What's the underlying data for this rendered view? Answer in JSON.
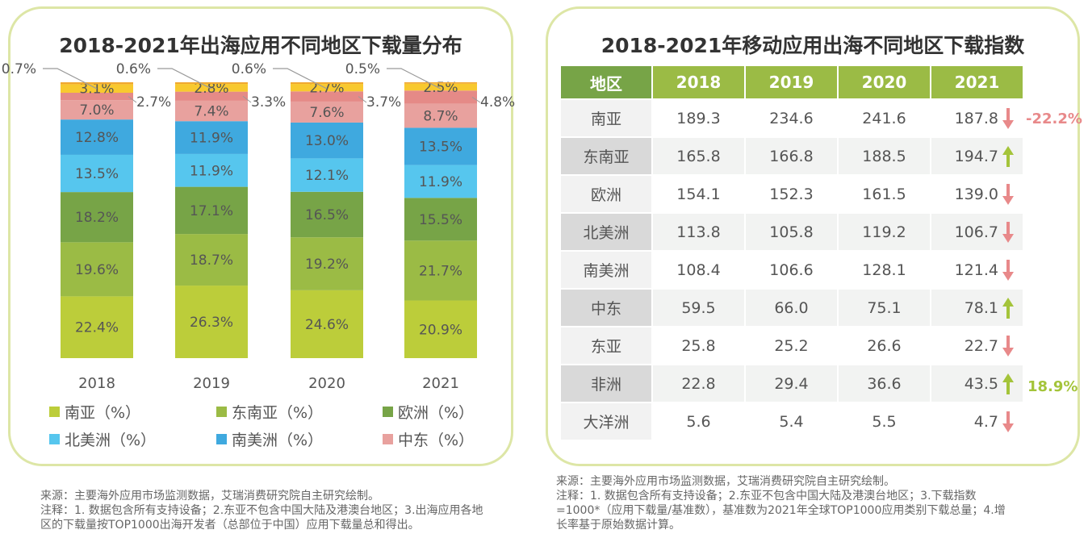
{
  "left_panel": {
    "title": "2018-2021年出海应用不同地区下载量分布",
    "chart_data": {
      "type": "bar",
      "stacked": true,
      "categories": [
        "2018",
        "2019",
        "2020",
        "2021"
      ],
      "unit": "%",
      "series": [
        {
          "name": "南亚（%）",
          "color": "#bccd3a",
          "values": [
            22.4,
            26.3,
            24.6,
            20.9
          ]
        },
        {
          "name": "东南亚（%）",
          "color": "#9bbb45",
          "values": [
            19.6,
            18.7,
            19.2,
            21.7
          ]
        },
        {
          "name": "欧洲（%）",
          "color": "#77a447",
          "values": [
            18.2,
            17.1,
            16.5,
            15.5
          ]
        },
        {
          "name": "北美洲（%）",
          "color": "#56c6ee",
          "values": [
            13.5,
            11.9,
            12.1,
            11.9
          ]
        },
        {
          "name": "南美洲（%）",
          "color": "#3fa9df",
          "values": [
            12.8,
            11.9,
            13.0,
            13.5
          ]
        },
        {
          "name": "中东（%）",
          "color": "#e8a19e",
          "values": [
            7.0,
            7.4,
            7.6,
            8.7
          ]
        },
        {
          "color": "#e58a87",
          "values": [
            2.7,
            3.3,
            3.7,
            4.8
          ]
        },
        {
          "color": "#f8c92f",
          "values": [
            3.1,
            2.8,
            2.7,
            2.5
          ]
        },
        {
          "color": "#f0a830",
          "values": [
            0.7,
            0.6,
            0.6,
            0.5
          ]
        }
      ],
      "ylim": [
        0,
        100
      ],
      "grid": false,
      "legend": "bottom"
    }
  },
  "right_panel": {
    "title": "2018-2021年移动应用出海不同地区下载指数",
    "headers": [
      "地区",
      "2018",
      "2019",
      "2020",
      "2021"
    ],
    "rows": [
      {
        "region": "南亚",
        "values": [
          "189.3",
          "234.6",
          "241.6",
          "187.8"
        ],
        "trend": "down"
      },
      {
        "region": "东南亚",
        "values": [
          "165.8",
          "166.8",
          "188.5",
          "194.7"
        ],
        "trend": "up"
      },
      {
        "region": "欧洲",
        "values": [
          "154.1",
          "152.3",
          "161.5",
          "139.0"
        ],
        "trend": "down"
      },
      {
        "region": "北美洲",
        "values": [
          "113.8",
          "105.8",
          "119.2",
          "106.7"
        ],
        "trend": "down"
      },
      {
        "region": "南美洲",
        "values": [
          "108.4",
          "106.6",
          "128.1",
          "121.4"
        ],
        "trend": "down"
      },
      {
        "region": "中东",
        "values": [
          "59.5",
          "66.0",
          "75.1",
          "78.1"
        ],
        "trend": "up"
      },
      {
        "region": "东亚",
        "values": [
          "25.8",
          "25.2",
          "26.6",
          "22.7"
        ],
        "trend": "down"
      },
      {
        "region": "非洲",
        "values": [
          "22.8",
          "29.4",
          "36.6",
          "43.5"
        ],
        "trend": "up"
      },
      {
        "region": "大洋洲",
        "values": [
          "5.6",
          "5.4",
          "5.5",
          "4.7"
        ],
        "trend": "down"
      }
    ],
    "annotations": {
      "south_asia_change": "-22.2%",
      "africa_change": "18.9%"
    },
    "colors": {
      "up": "#a4c43a",
      "down": "#e8898a",
      "header": "#9bbb45",
      "header_first": "#77a447"
    }
  },
  "notes_left": [
    "来源：主要海外应用市场监测数据，艾瑞消费研究院自主研究绘制。",
    "注释：1. 数据包含所有支持设备；2.东亚不包含中国大陆及港澳台地区；3.出海应用各地",
    "区的下载量按TOP1000出海开发者（总部位于中国）应用下载量总和得出。"
  ],
  "notes_right": [
    "来源：主要海外应用市场监测数据，艾瑞消费研究院自主研究绘制。",
    "注释：1. 数据包含所有支持设备；2.东亚不包含中国大陆及港澳台地区；3.下载指数",
    "=1000*（应用下载量/基准数），基准数为2021年全球TOP1000应用类别下载总量；4.增",
    "长率基于原始数据计算。"
  ]
}
